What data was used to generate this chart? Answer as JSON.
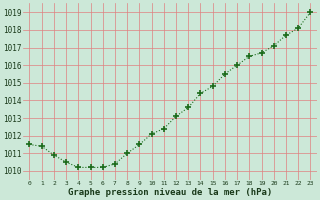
{
  "x": [
    0,
    1,
    2,
    3,
    4,
    5,
    6,
    7,
    8,
    9,
    10,
    11,
    12,
    13,
    14,
    15,
    16,
    17,
    18,
    19,
    20,
    21,
    22,
    23
  ],
  "y": [
    1011.5,
    1011.4,
    1010.9,
    1010.5,
    1010.2,
    1010.2,
    1010.2,
    1010.4,
    1011.0,
    1011.5,
    1012.1,
    1012.4,
    1013.1,
    1013.6,
    1014.4,
    1014.8,
    1015.5,
    1016.0,
    1016.5,
    1016.7,
    1017.1,
    1017.7,
    1018.1,
    1019.0
  ],
  "line_color": "#1a6b1a",
  "marker": "+",
  "marker_size": 4,
  "bg_color": "#cce8d8",
  "grid_color": "#e08080",
  "xlabel": "Graphe pression niveau de la mer (hPa)",
  "xlabel_color": "#1a3a1a",
  "tick_label_color": "#1a3a1a",
  "ylim": [
    1009.5,
    1019.5
  ],
  "yticks": [
    1010,
    1011,
    1012,
    1013,
    1014,
    1015,
    1016,
    1017,
    1018,
    1019
  ],
  "xticks": [
    0,
    1,
    2,
    3,
    4,
    5,
    6,
    7,
    8,
    9,
    10,
    11,
    12,
    13,
    14,
    15,
    16,
    17,
    18,
    19,
    20,
    21,
    22,
    23
  ],
  "xlim": [
    -0.5,
    23.5
  ],
  "figsize": [
    3.2,
    2.0
  ],
  "dpi": 100
}
